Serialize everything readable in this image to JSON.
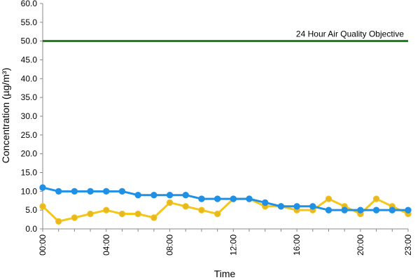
{
  "chart_data": {
    "type": "line",
    "title": "",
    "xlabel": "Time",
    "ylabel": "Concentration (µg/m³)",
    "ylim": [
      0,
      60
    ],
    "y_ticks": [
      "0.0",
      "5.0",
      "10.0",
      "15.0",
      "20.0",
      "25.0",
      "30.0",
      "35.0",
      "40.0",
      "45.0",
      "50.0",
      "55.0",
      "60.0"
    ],
    "y_tick_values": [
      0,
      5,
      10,
      15,
      20,
      25,
      30,
      35,
      40,
      45,
      50,
      55,
      60
    ],
    "x": [
      0,
      1,
      2,
      3,
      4,
      5,
      6,
      7,
      8,
      9,
      10,
      11,
      12,
      13,
      14,
      15,
      16,
      17,
      18,
      19,
      20,
      21,
      22,
      23
    ],
    "x_tick_labels": [
      "00:00",
      "04:00",
      "08:00",
      "12:00",
      "16:00",
      "20:00",
      "23:00"
    ],
    "x_tick_hours": [
      0,
      4,
      8,
      12,
      16,
      20,
      23
    ],
    "grid": false,
    "series": [
      {
        "name": "",
        "color": "#f5c518",
        "marker_color": "#e8b820",
        "values": [
          6,
          2,
          3,
          4,
          5,
          4,
          4,
          3,
          7,
          6,
          5,
          4,
          8,
          8,
          6,
          6,
          5,
          5,
          8,
          6,
          4,
          8,
          6,
          4
        ]
      },
      {
        "name": "",
        "color": "#1e90e6",
        "marker_color": "#1e90e6",
        "values": [
          11,
          10,
          10,
          10,
          10,
          10,
          9,
          9,
          9,
          9,
          8,
          8,
          8,
          8,
          7,
          6,
          6,
          6,
          5,
          5,
          5,
          5,
          5,
          5
        ]
      }
    ],
    "reference_line": {
      "label": "24 Hour Air Quality Objective",
      "value": 50,
      "color": "#1a7a1a"
    }
  }
}
